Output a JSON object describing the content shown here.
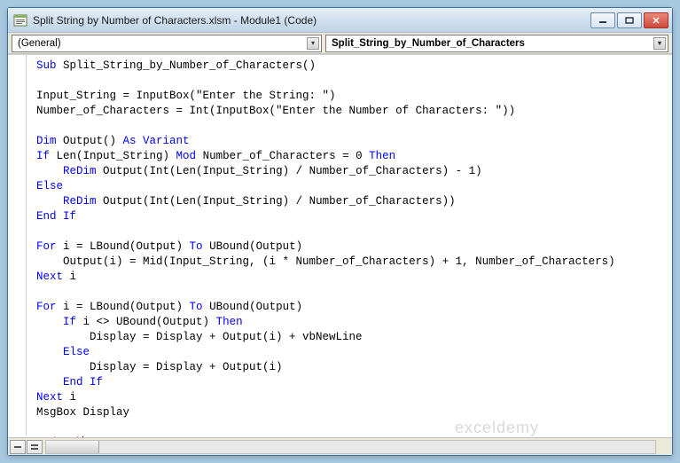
{
  "window": {
    "title": "Split String by Number of Characters.xlsm - Module1 (Code)"
  },
  "dropdowns": {
    "object": "(General)",
    "procedure": "Split_String_by_Number_of_Characters"
  },
  "watermark": {
    "main": "exceldemy",
    "sub": "EXCEL · DATA · BI"
  },
  "code": {
    "lines": [
      {
        "indent": 0,
        "tokens": [
          {
            "t": "kw",
            "v": "Sub"
          },
          {
            "t": "p",
            "v": " Split_String_by_Number_of_Characters()"
          }
        ]
      },
      {
        "blank": true
      },
      {
        "indent": 0,
        "tokens": [
          {
            "t": "p",
            "v": "Input_String = InputBox(\"Enter the String: \")"
          }
        ]
      },
      {
        "indent": 0,
        "tokens": [
          {
            "t": "p",
            "v": "Number_of_Characters = Int(InputBox(\"Enter the Number of Characters: \"))"
          }
        ]
      },
      {
        "blank": true
      },
      {
        "indent": 0,
        "tokens": [
          {
            "t": "kw",
            "v": "Dim"
          },
          {
            "t": "p",
            "v": " Output() "
          },
          {
            "t": "kw",
            "v": "As Variant"
          }
        ]
      },
      {
        "indent": 0,
        "tokens": [
          {
            "t": "kw",
            "v": "If"
          },
          {
            "t": "p",
            "v": " Len(Input_String) "
          },
          {
            "t": "kw",
            "v": "Mod"
          },
          {
            "t": "p",
            "v": " Number_of_Characters = 0 "
          },
          {
            "t": "kw",
            "v": "Then"
          }
        ]
      },
      {
        "indent": 1,
        "tokens": [
          {
            "t": "kw",
            "v": "ReDim"
          },
          {
            "t": "p",
            "v": " Output(Int(Len(Input_String) / Number_of_Characters) - 1)"
          }
        ]
      },
      {
        "indent": 0,
        "tokens": [
          {
            "t": "kw",
            "v": "Else"
          }
        ]
      },
      {
        "indent": 1,
        "tokens": [
          {
            "t": "kw",
            "v": "ReDim"
          },
          {
            "t": "p",
            "v": " Output(Int(Len(Input_String) / Number_of_Characters))"
          }
        ]
      },
      {
        "indent": 0,
        "tokens": [
          {
            "t": "kw",
            "v": "End If"
          }
        ]
      },
      {
        "blank": true
      },
      {
        "indent": 0,
        "tokens": [
          {
            "t": "kw",
            "v": "For"
          },
          {
            "t": "p",
            "v": " i = LBound(Output) "
          },
          {
            "t": "kw",
            "v": "To"
          },
          {
            "t": "p",
            "v": " UBound(Output)"
          }
        ]
      },
      {
        "indent": 1,
        "tokens": [
          {
            "t": "p",
            "v": "Output(i) = Mid(Input_String, (i * Number_of_Characters) + 1, Number_of_Characters)"
          }
        ]
      },
      {
        "indent": 0,
        "tokens": [
          {
            "t": "kw",
            "v": "Next"
          },
          {
            "t": "p",
            "v": " i"
          }
        ]
      },
      {
        "blank": true
      },
      {
        "indent": 0,
        "tokens": [
          {
            "t": "kw",
            "v": "For"
          },
          {
            "t": "p",
            "v": " i = LBound(Output) "
          },
          {
            "t": "kw",
            "v": "To"
          },
          {
            "t": "p",
            "v": " UBound(Output)"
          }
        ]
      },
      {
        "indent": 1,
        "tokens": [
          {
            "t": "kw",
            "v": "If"
          },
          {
            "t": "p",
            "v": " i <> UBound(Output) "
          },
          {
            "t": "kw",
            "v": "Then"
          }
        ]
      },
      {
        "indent": 2,
        "tokens": [
          {
            "t": "p",
            "v": "Display = Display + Output(i) + vbNewLine"
          }
        ]
      },
      {
        "indent": 1,
        "tokens": [
          {
            "t": "kw",
            "v": "Else"
          }
        ]
      },
      {
        "indent": 2,
        "tokens": [
          {
            "t": "p",
            "v": "Display = Display + Output(i)"
          }
        ]
      },
      {
        "indent": 1,
        "tokens": [
          {
            "t": "kw",
            "v": "End If"
          }
        ]
      },
      {
        "indent": 0,
        "tokens": [
          {
            "t": "kw",
            "v": "Next"
          },
          {
            "t": "p",
            "v": " i"
          }
        ]
      },
      {
        "indent": 0,
        "tokens": [
          {
            "t": "p",
            "v": "MsgBox Display"
          }
        ]
      },
      {
        "blank": true
      },
      {
        "indent": 0,
        "tokens": [
          {
            "t": "kw",
            "v": "End Sub"
          }
        ],
        "cursor": true
      }
    ],
    "indent_unit": "    "
  },
  "colors": {
    "keyword": "#0000ff",
    "plain": "#000000",
    "window_border": "#3c6e9e",
    "titlebar_grad_top": "#e8f0f8",
    "titlebar_grad_bot": "#c0d4e6",
    "toolbar_bg": "#ece9d8"
  }
}
